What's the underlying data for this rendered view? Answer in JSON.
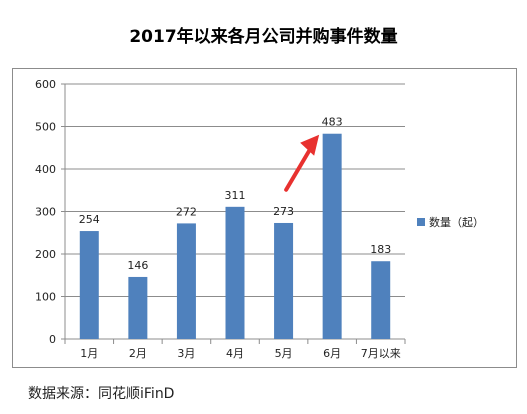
{
  "title": "2017年以来各月公司并购事件数量",
  "source": "数据来源：同花顺iFinD",
  "chart_data": {
    "type": "bar",
    "title": "2017年以来各月公司并购事件数量",
    "categories": [
      "1月",
      "2月",
      "3月",
      "4月",
      "5月",
      "6月",
      "7月以来"
    ],
    "series": [
      {
        "name": "数量（起）",
        "values": [
          254,
          146,
          272,
          311,
          273,
          483,
          183
        ]
      }
    ],
    "data_labels": [
      "254",
      "146",
      "272",
      "311",
      "273",
      "483",
      "183"
    ],
    "ylim": [
      0,
      600
    ],
    "yticks": [
      0,
      100,
      200,
      300,
      400,
      500,
      600
    ],
    "grid": true,
    "legend_position": "right",
    "bar_color": "#4f81bd",
    "annotation": {
      "type": "arrow",
      "color": "#e8312f",
      "target_category": "6月"
    }
  }
}
